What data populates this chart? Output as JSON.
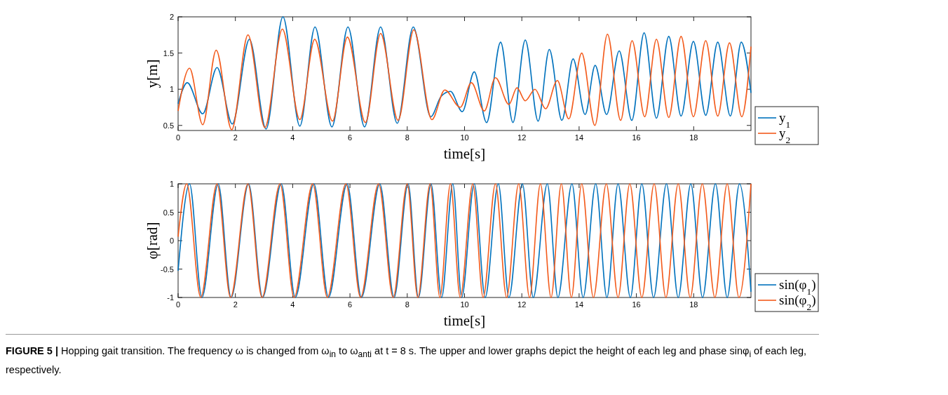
{
  "chart_data": [
    {
      "type": "line",
      "xlabel": "time[s]",
      "ylabel": "y[m]",
      "xlim": [
        0,
        20
      ],
      "ylim": [
        0.43,
        2
      ],
      "xticks": [
        0,
        2,
        4,
        6,
        8,
        10,
        12,
        14,
        16,
        18
      ],
      "yticks": [
        0.5,
        1,
        1.5,
        2
      ],
      "legend": "bottom right",
      "grid": false,
      "series": [
        {
          "name": "y$_{1}$",
          "color": "#0072bd",
          "x": [
            0,
            0.32,
            0.86,
            1.36,
            1.89,
            2.49,
            3.07,
            3.66,
            4.25,
            4.78,
            5.37,
            5.93,
            6.51,
            7.07,
            7.65,
            8.21,
            8.82,
            9.18,
            9.51,
            9.92,
            10.34,
            10.77,
            11.26,
            11.69,
            12.12,
            12.57,
            12.96,
            13.4,
            13.79,
            14.21,
            14.56,
            14.96,
            15.4,
            15.84,
            16.27,
            16.7,
            17.13,
            17.56,
            17.99,
            18.42,
            18.84,
            19.28,
            19.66,
            20
          ],
          "values": [
            0.8,
            1.09,
            0.66,
            1.3,
            0.52,
            1.69,
            0.45,
            2.0,
            0.49,
            1.86,
            0.48,
            1.86,
            0.48,
            1.86,
            0.53,
            1.86,
            0.62,
            0.9,
            0.97,
            0.69,
            1.24,
            0.54,
            1.65,
            0.54,
            1.68,
            0.56,
            1.55,
            0.57,
            1.42,
            0.65,
            1.33,
            0.65,
            1.53,
            0.57,
            1.78,
            0.6,
            1.73,
            0.63,
            1.66,
            0.64,
            1.65,
            0.63,
            1.65,
            0.95
          ]
        },
        {
          "name": "y$_{2}$",
          "color": "#f35b1c",
          "x": [
            0,
            0.4,
            0.86,
            1.33,
            1.87,
            2.44,
            3.03,
            3.64,
            4.25,
            4.77,
            5.39,
            5.91,
            6.54,
            7.07,
            7.68,
            8.23,
            8.86,
            9.31,
            9.85,
            10.24,
            10.69,
            11.08,
            11.55,
            11.83,
            12.12,
            12.46,
            12.83,
            13.24,
            13.64,
            14.09,
            14.55,
            14.99,
            15.45,
            15.85,
            16.29,
            16.7,
            17.13,
            17.56,
            17.99,
            18.42,
            18.84,
            19.25,
            19.68,
            20
          ],
          "values": [
            0.7,
            1.29,
            0.51,
            1.54,
            0.44,
            1.75,
            0.47,
            1.83,
            0.58,
            1.69,
            0.56,
            1.72,
            0.54,
            1.77,
            0.57,
            1.82,
            0.58,
            0.99,
            0.75,
            1.09,
            0.7,
            1.16,
            0.79,
            1.02,
            0.84,
            1.0,
            0.73,
            1.12,
            0.59,
            1.5,
            0.5,
            1.76,
            0.57,
            1.67,
            0.62,
            1.69,
            0.61,
            1.73,
            0.62,
            1.67,
            0.63,
            1.64,
            0.62,
            1.59
          ]
        }
      ]
    },
    {
      "type": "line",
      "xlabel": "time[s]",
      "ylabel": "φ[rad]",
      "xlim": [
        0,
        20
      ],
      "ylim": [
        -1,
        1
      ],
      "xticks": [
        0,
        2,
        4,
        6,
        8,
        10,
        12,
        14,
        16,
        18
      ],
      "yticks": [
        -1,
        -0.5,
        0,
        0.5,
        1
      ],
      "legend": "bottom right",
      "grid": false,
      "series": [
        {
          "name": "sin(φ$_{1}$)",
          "color": "#0072bd",
          "x": [
            0,
            0.4,
            0.83,
            1.4,
            1.85,
            2.46,
            2.95,
            3.6,
            4.09,
            4.74,
            5.25,
            5.9,
            6.4,
            7.04,
            7.54,
            8.03,
            8.39,
            8.83,
            9.2,
            9.59,
            9.9,
            10.34,
            10.72,
            11.18,
            11.55,
            12.02,
            12.4,
            12.89,
            13.26,
            13.75,
            14.14,
            14.58,
            14.97,
            15.36,
            15.79,
            16.19,
            16.6,
            17.05,
            17.46,
            17.9,
            18.31,
            18.76,
            19.17,
            19.6,
            20
          ],
          "values": [
            -0.53,
            1,
            -1,
            1,
            -1,
            1,
            -1,
            1,
            -1,
            1,
            -1,
            1,
            -1,
            1,
            -1,
            1,
            -1,
            1,
            -1,
            1,
            -1,
            1,
            -1,
            1,
            -1,
            1,
            -1,
            1,
            -1,
            1,
            -1,
            1,
            -1,
            1,
            -1,
            1,
            -1,
            1,
            -1,
            1,
            -1,
            1,
            -1,
            1,
            -0.9
          ]
        },
        {
          "name": "sin(φ$_{2}$)",
          "color": "#f35b1c",
          "x": [
            0,
            0.3,
            0.79,
            1.36,
            1.83,
            2.44,
            2.93,
            3.56,
            4.05,
            4.7,
            5.21,
            5.86,
            6.37,
            7.0,
            7.51,
            8.0,
            8.37,
            8.8,
            9.14,
            9.51,
            9.85,
            10.29,
            10.65,
            11.08,
            11.47,
            11.89,
            12.27,
            12.65,
            13.02,
            13.38,
            13.73,
            14.09,
            14.5,
            14.95,
            15.36,
            15.77,
            16.19,
            16.62,
            17.03,
            17.46,
            17.88,
            18.3,
            18.74,
            19.17,
            19.58,
            20
          ],
          "values": [
            0.07,
            1,
            -1,
            1,
            -1,
            1,
            -1,
            1,
            -1,
            1,
            -1,
            1,
            -1,
            1,
            -1,
            1,
            -1,
            1,
            -1,
            1,
            -1,
            1,
            -1,
            1,
            -1,
            1,
            -1,
            1,
            -1,
            1,
            -1,
            1,
            -1,
            1,
            -1,
            1,
            -1,
            1,
            -1,
            1,
            -1,
            1,
            -1,
            1,
            -1,
            1
          ]
        }
      ],
      "annotations": [
        "FIGURE 5 |",
        "Hopping gait transition. The frequency ω is changed from ω$_{in}$ to ω$_{anti}$ at t = 8 s. The upper and lower graphs depict the height of each leg and phase sinφ$_{i}$ of each leg, respectively."
      ]
    }
  ]
}
